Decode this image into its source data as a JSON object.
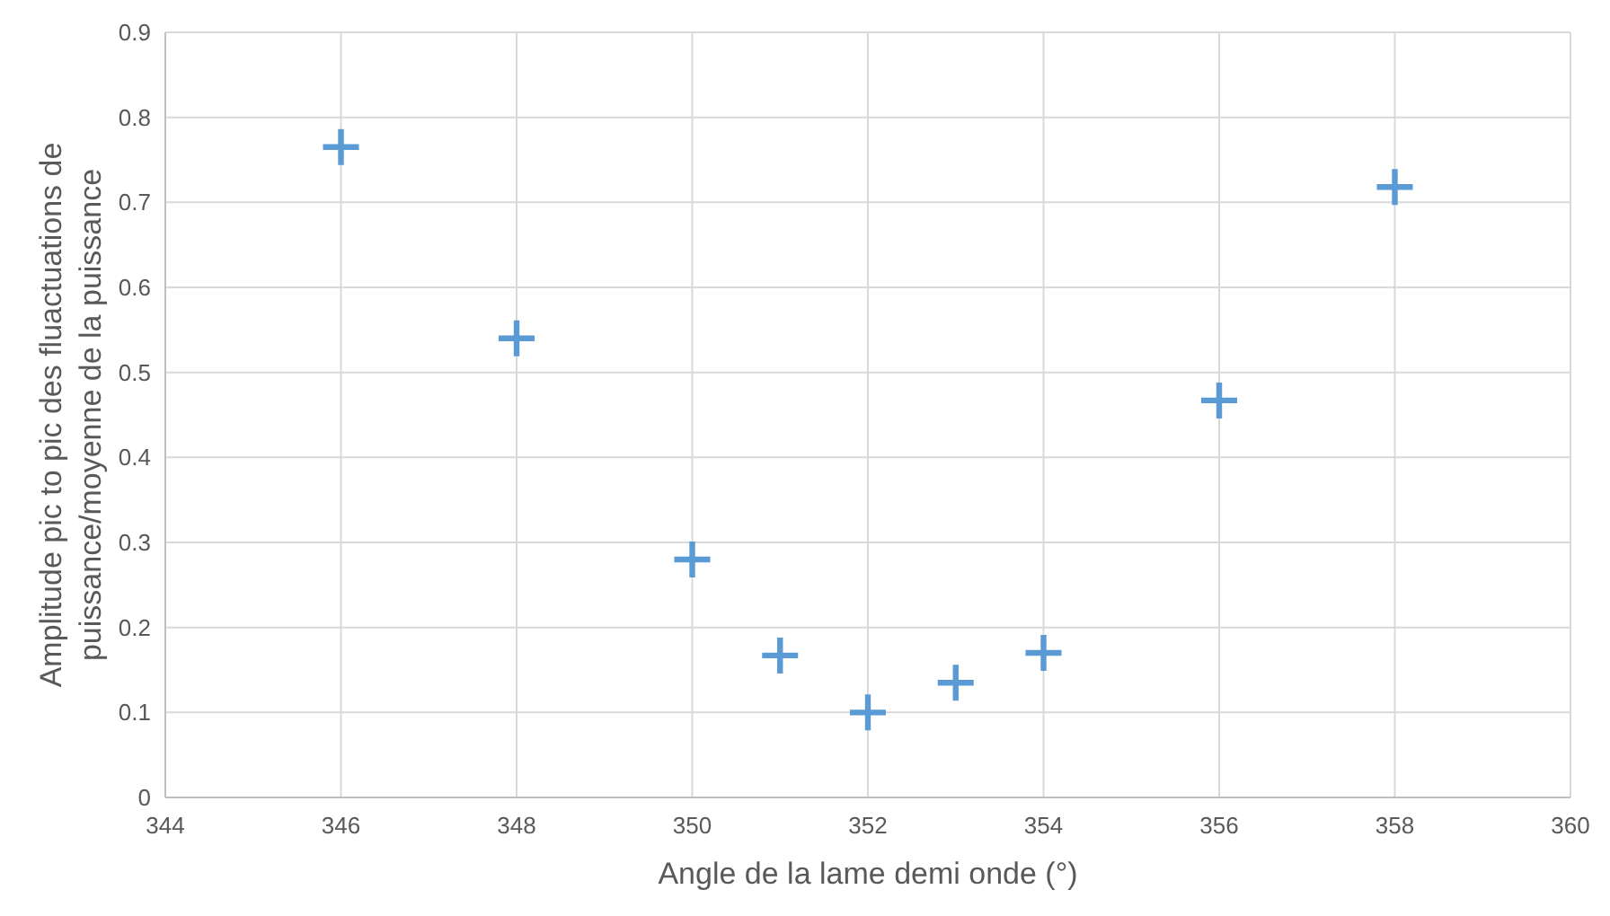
{
  "chart_data": {
    "type": "scatter",
    "xlabel": "Angle de la lame demi onde (°)",
    "ylabel": "Amplitude pic to pic des fluactuations de puissance/moyenne de la puissance",
    "x": [
      346,
      348,
      350,
      351,
      352,
      353,
      354,
      356,
      358
    ],
    "series": [
      {
        "color": "#5b9bd5",
        "values": [
          0.765,
          0.54,
          0.28,
          0.167,
          0.1,
          0.135,
          0.17,
          0.467,
          0.718
        ]
      }
    ],
    "xlim": [
      344,
      360
    ],
    "xticks": [
      344,
      346,
      348,
      350,
      352,
      354,
      356,
      358,
      360
    ],
    "ylim": [
      0,
      0.9
    ],
    "yticks": [
      0,
      0.1,
      0.2,
      0.3,
      0.4,
      0.5,
      0.6,
      0.7,
      0.8,
      0.9
    ],
    "grid": true,
    "marker": "cross"
  }
}
